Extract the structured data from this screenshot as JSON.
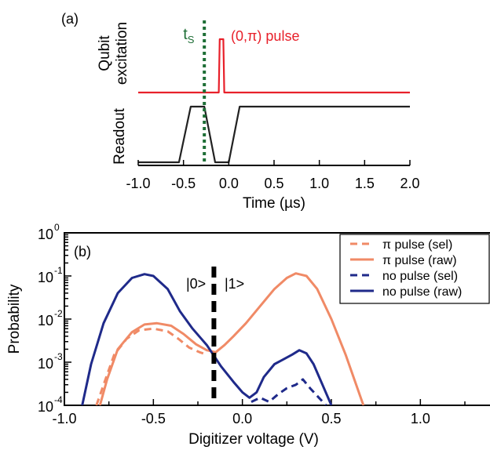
{
  "chart_data": [
    {
      "panel": "(a)",
      "type": "line",
      "xlabel": "Time (µs)",
      "xlim": [
        -1.0,
        2.0
      ],
      "xticks": [
        "-1.0",
        "-0.5",
        "0.0",
        "0.5",
        "1.0",
        "1.5",
        "2.0"
      ],
      "qubit_ylabel": [
        "Qubit",
        "excitation"
      ],
      "readout_ylabel": "Readout",
      "annotations": {
        "pulse_label": "(0,π) pulse",
        "ts_main": "t",
        "ts_sub": "S"
      },
      "ts_time": -0.27,
      "series": [
        {
          "name": "qubit",
          "color": "#e8202a",
          "x": [
            -1.0,
            -0.11,
            -0.1,
            -0.06,
            -0.05,
            2.0
          ],
          "level": [
            0,
            0,
            1,
            1,
            0,
            0
          ]
        },
        {
          "name": "readout",
          "color": "#222222",
          "x": [
            -1.0,
            -0.55,
            -0.42,
            -0.27,
            -0.15,
            0.0,
            0.12,
            2.0
          ],
          "level": [
            0,
            0,
            1,
            1,
            0,
            0,
            1,
            1
          ]
        }
      ]
    },
    {
      "panel": "(b)",
      "type": "line",
      "xlabel": "Digitizer voltage (V)",
      "ylabel": "Probability",
      "xlim": [
        -1.0,
        1.4
      ],
      "ylog": true,
      "ylim_exp": [
        -4,
        0
      ],
      "xticks": [
        "-1.0",
        "-0.5",
        "0.0",
        "0.5",
        "1.0"
      ],
      "yticks": [
        {
          "base": "10",
          "exp": "0"
        },
        {
          "base": "10",
          "exp": "-1"
        },
        {
          "base": "10",
          "exp": "-2"
        },
        {
          "base": "10",
          "exp": "-3"
        },
        {
          "base": "10",
          "exp": "-4"
        }
      ],
      "threshold_x": -0.16,
      "state_labels": [
        "|0>",
        "|1>"
      ],
      "legend_position": "top-right",
      "series": [
        {
          "name": "π pulse (sel)",
          "color": "#f08a66",
          "dashed": true,
          "x": [
            -0.82,
            -0.78,
            -0.72,
            -0.65,
            -0.58,
            -0.5,
            -0.42,
            -0.36,
            -0.3,
            -0.24,
            -0.2
          ],
          "y": [
            0.0001,
            0.0003,
            0.0015,
            0.0035,
            0.0055,
            0.006,
            0.0052,
            0.0035,
            0.0022,
            0.0017,
            0.0015
          ]
        },
        {
          "name": "π pulse (raw)",
          "color": "#f08a66",
          "dashed": false,
          "x": [
            -0.8,
            -0.76,
            -0.7,
            -0.62,
            -0.55,
            -0.48,
            -0.4,
            -0.33,
            -0.26,
            -0.2,
            -0.15,
            -0.1,
            -0.05,
            0.02,
            0.1,
            0.18,
            0.25,
            0.3,
            0.36,
            0.42,
            0.5,
            0.58,
            0.68
          ],
          "y": [
            0.0001,
            0.0004,
            0.002,
            0.005,
            0.0075,
            0.008,
            0.007,
            0.0045,
            0.0026,
            0.0019,
            0.0017,
            0.0025,
            0.004,
            0.008,
            0.02,
            0.05,
            0.09,
            0.115,
            0.1,
            0.05,
            0.01,
            0.0015,
            0.0001
          ]
        },
        {
          "name": "no pulse (sel)",
          "color": "#1f2a8a",
          "dashed": true,
          "x": [
            0.05,
            0.1,
            0.15,
            0.2,
            0.25,
            0.3,
            0.34,
            0.38,
            0.43,
            0.47
          ],
          "y": [
            0.00012,
            0.00015,
            0.00012,
            0.00018,
            0.00025,
            0.0003,
            0.0004,
            0.00025,
            0.00015,
            0.0001
          ]
        },
        {
          "name": "no pulse (raw)",
          "color": "#1f2a8a",
          "dashed": false,
          "x": [
            -0.9,
            -0.85,
            -0.78,
            -0.7,
            -0.62,
            -0.55,
            -0.5,
            -0.42,
            -0.35,
            -0.28,
            -0.2,
            -0.12,
            -0.05,
            0.0,
            0.04,
            0.08,
            0.12,
            0.18,
            0.22,
            0.28,
            0.32,
            0.36,
            0.4,
            0.45,
            0.5
          ],
          "y": [
            0.0001,
            0.0009,
            0.008,
            0.04,
            0.09,
            0.11,
            0.1,
            0.05,
            0.015,
            0.006,
            0.0025,
            0.0008,
            0.00035,
            0.0002,
            0.00015,
            0.0002,
            0.00045,
            0.0009,
            0.0011,
            0.0015,
            0.0019,
            0.0016,
            0.0009,
            0.0003,
            0.0001
          ]
        }
      ]
    }
  ]
}
